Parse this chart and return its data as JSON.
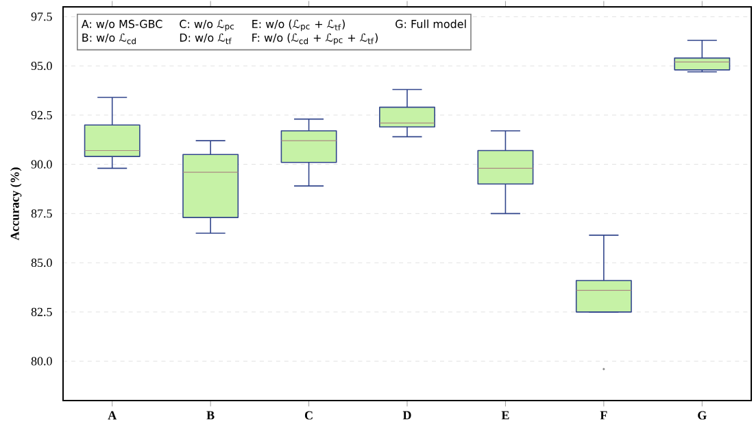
{
  "chart_data": {
    "type": "box",
    "categories": [
      "A",
      "B",
      "C",
      "D",
      "E",
      "F",
      "G"
    ],
    "boxes": [
      {
        "low": 89.8,
        "q1": 90.4,
        "median": 90.7,
        "q3": 92.0,
        "high": 93.4
      },
      {
        "low": 86.5,
        "q1": 87.3,
        "median": 89.6,
        "q3": 90.5,
        "high": 91.2
      },
      {
        "low": 88.9,
        "q1": 90.1,
        "median": 91.2,
        "q3": 91.7,
        "high": 92.3
      },
      {
        "low": 91.4,
        "q1": 91.9,
        "median": 92.1,
        "q3": 92.9,
        "high": 93.8
      },
      {
        "low": 87.5,
        "q1": 89.0,
        "median": 89.8,
        "q3": 90.7,
        "high": 91.7
      },
      {
        "low": 82.5,
        "q1": 82.5,
        "median": 83.6,
        "q3": 84.1,
        "high": 86.4,
        "outliers": [
          79.6
        ]
      },
      {
        "low": 94.7,
        "q1": 94.8,
        "median": 95.2,
        "q3": 95.4,
        "high": 96.3
      }
    ],
    "color": "#c6f2a6",
    "ylabel": "Accuracy (%)",
    "ylim": [
      78,
      98
    ],
    "yticks": [
      {
        "value": 80,
        "label": "80.0"
      },
      {
        "value": 82.5,
        "label": "82.5"
      },
      {
        "value": 85,
        "label": "85.0"
      },
      {
        "value": 87.5,
        "label": "87.5"
      },
      {
        "value": 90,
        "label": "90.0"
      },
      {
        "value": 92.5,
        "label": "92.5"
      },
      {
        "value": 95,
        "label": "95.0"
      },
      {
        "value": 97.5,
        "label": "97.5"
      }
    ],
    "grid": "y",
    "annotations": [
      "A: w/o MS-GBC",
      "B: w/o ℒ$_{cd}$",
      "C: w/o ℒ$_{pc}$",
      "D: w/o ℒ$_{tf}$",
      "E: w/o (ℒ$_{pc}$ + ℒ$_{tf}$)",
      "F: w/o (ℒ$_{cd}$ + ℒ$_{pc}$ + ℒ$_{tf}$)",
      "G: Full model"
    ]
  }
}
